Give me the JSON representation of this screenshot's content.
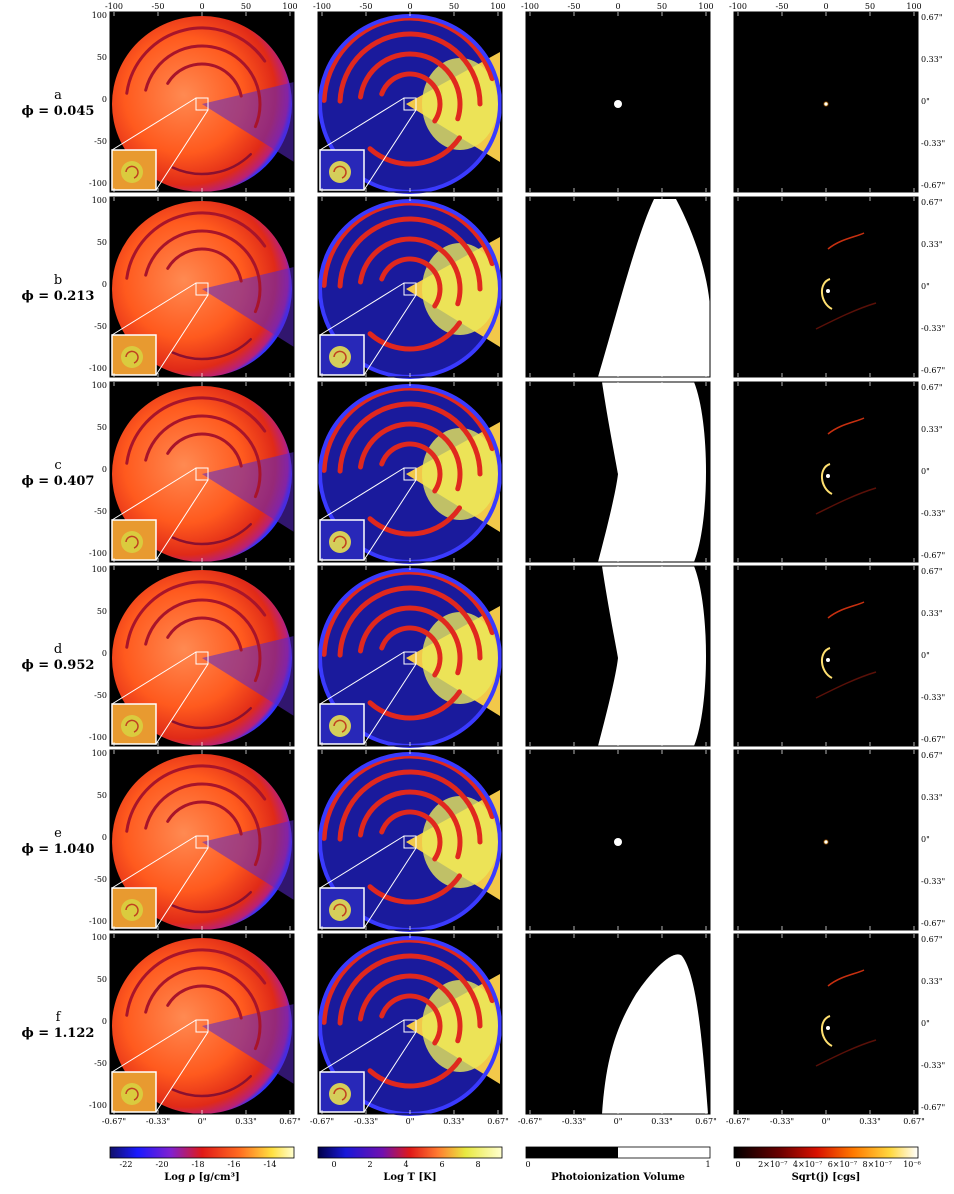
{
  "rows": [
    {
      "letter": "a",
      "phi": "ϕ = 0.045",
      "col3": "dot",
      "col4": "dot"
    },
    {
      "letter": "b",
      "phi": "ϕ = 0.213",
      "col3": "lobe-right",
      "col4": "arcs"
    },
    {
      "letter": "c",
      "phi": "ϕ = 0.407",
      "col3": "lobe-full",
      "col4": "arcs"
    },
    {
      "letter": "d",
      "phi": "ϕ = 0.952",
      "col3": "lobe-full",
      "col4": "arcs"
    },
    {
      "letter": "e",
      "phi": "ϕ = 1.040",
      "col3": "dot",
      "col4": "dot"
    },
    {
      "letter": "f",
      "phi": "ϕ = 1.122",
      "col3": "lobe-lower",
      "col4": "arcs"
    }
  ],
  "axes": {
    "top_ticks": [
      "-100",
      "-50",
      "0",
      "50",
      "100"
    ],
    "left_ticks": [
      "100",
      "50",
      "0",
      "-50",
      "-100"
    ],
    "bottom_ticks": [
      "-0.67\"",
      "-0.33\"",
      "0\"",
      "0.33\"",
      "0.67\""
    ],
    "right_ticks": [
      "0.67\"",
      "0.33\"",
      "0\"",
      "-0.33\"",
      "-0.67\""
    ]
  },
  "colorbars": [
    {
      "title": "Log  ρ  [g/cm³]",
      "ticks": [
        "-22",
        "-20",
        "-18",
        "-16",
        "-14"
      ],
      "palette": "density"
    },
    {
      "title": "Log T  [K]",
      "ticks": [
        "0",
        "2",
        "4",
        "6",
        "8"
      ],
      "palette": "temperature"
    },
    {
      "title": "Photoionization Volume",
      "ticks": [
        "0",
        "1"
      ],
      "palette": "binary"
    },
    {
      "title": "Sqrt(j) [cgs]",
      "ticks": [
        "0",
        "2×10⁻⁷",
        "4×10⁻⁷",
        "6×10⁻⁷",
        "8×10⁻⁷",
        "10⁻⁶"
      ],
      "palette": "heat"
    }
  ],
  "colors": {
    "density_hi": "#ff5a1e",
    "density_mid": "#e02a18",
    "density_lo": "#3232ff",
    "temp_hot": "#ffff66",
    "temp_warm": "#ff8a3a",
    "temp_cold": "#10148a",
    "ion": "#ffffff",
    "bg": "#000000"
  }
}
